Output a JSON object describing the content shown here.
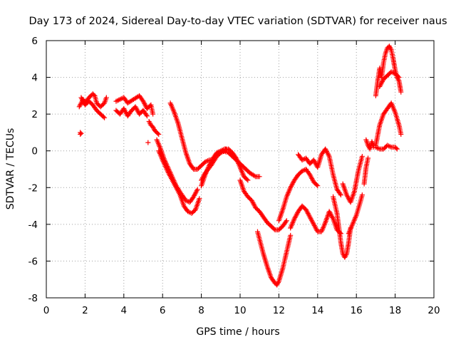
{
  "chart_data": {
    "type": "scatter",
    "title": "Day 173 of 2024, Sidereal Day-to-day VTEC variation (SDTVAR) for receiver naus",
    "xlabel": "GPS time / hours",
    "ylabel": "SDTVAR / TECUs",
    "xlim": [
      0,
      20
    ],
    "ylim": [
      -8,
      6
    ],
    "x_ticks": [
      "0",
      "2",
      "4",
      "6",
      "8",
      "10",
      "12",
      "14",
      "16",
      "18",
      "20"
    ],
    "y_ticks": [
      "-8",
      "-6",
      "-4",
      "-2",
      "0",
      "2",
      "4",
      "6"
    ],
    "grid": true,
    "legend": "none",
    "marker": "+",
    "color": "#ff0000",
    "series": [
      {
        "x": [
          1.75,
          1.8,
          1.75
        ],
        "y": [
          1.0,
          0.95,
          0.9
        ]
      },
      {
        "x": [
          1.7,
          1.8,
          1.9,
          2.0,
          2.2,
          2.4,
          2.5,
          2.6,
          2.8,
          3.0,
          3.1
        ],
        "y": [
          2.4,
          2.6,
          2.8,
          2.6,
          2.9,
          3.1,
          3.0,
          2.6,
          2.4,
          2.6,
          2.9
        ]
      },
      {
        "x": [
          1.8,
          2.0,
          2.2,
          2.4,
          2.6,
          2.8,
          3.0
        ],
        "y": [
          2.9,
          2.5,
          2.7,
          2.5,
          2.2,
          2.0,
          1.8
        ]
      },
      {
        "x": [
          3.6,
          3.8,
          4.0,
          4.2,
          4.5,
          4.8,
          5.0,
          5.2,
          5.4,
          5.5
        ],
        "y": [
          2.7,
          2.8,
          2.9,
          2.6,
          2.8,
          3.0,
          2.7,
          2.3,
          2.5,
          2.0
        ]
      },
      {
        "x": [
          3.6,
          3.8,
          4.0,
          4.2,
          4.4,
          4.6,
          4.8,
          5.0,
          5.2
        ],
        "y": [
          2.2,
          2.0,
          2.3,
          1.9,
          2.2,
          2.4,
          2.0,
          2.2,
          1.9
        ]
      },
      {
        "x": [
          5.3,
          5.4,
          5.5,
          5.6,
          5.7,
          5.8
        ],
        "y": [
          1.6,
          1.4,
          1.3,
          1.1,
          1.0,
          0.9
        ]
      },
      {
        "x": [
          5.25
        ],
        "y": [
          0.45
        ]
      },
      {
        "x": [
          5.8,
          6.0,
          6.3,
          6.6,
          6.9,
          7.1,
          7.3,
          7.5,
          7.7,
          7.9
        ],
        "y": [
          0.0,
          -0.5,
          -1.2,
          -1.8,
          -2.4,
          -3.0,
          -3.3,
          -3.4,
          -3.2,
          -2.6
        ]
      },
      {
        "x": [
          8.0,
          8.2,
          8.4,
          8.6,
          8.8,
          9.0,
          9.2,
          9.3
        ],
        "y": [
          -1.9,
          -1.3,
          -0.8,
          -0.4,
          -0.1,
          0.0,
          0.1,
          0.1
        ]
      },
      {
        "x": [
          5.7,
          5.9,
          6.1,
          6.4,
          6.7,
          7.0,
          7.2,
          7.4,
          7.6,
          7.8
        ],
        "y": [
          0.6,
          0.1,
          -0.5,
          -1.2,
          -1.9,
          -2.4,
          -2.7,
          -2.8,
          -2.5,
          -2.1
        ]
      },
      {
        "x": [
          8.0,
          8.2,
          8.5,
          8.8,
          9.1,
          9.4,
          9.7,
          10.0,
          10.3,
          10.5,
          10.8,
          11.0
        ],
        "y": [
          -1.6,
          -1.2,
          -0.8,
          -0.3,
          0.0,
          -0.1,
          -0.4,
          -0.7,
          -1.0,
          -1.2,
          -1.4,
          -1.4
        ]
      },
      {
        "x": [
          6.4,
          6.6,
          6.8,
          7.0,
          7.2,
          7.4,
          7.6,
          7.8,
          8.0,
          8.2,
          8.4,
          8.6
        ],
        "y": [
          2.6,
          2.1,
          1.5,
          0.7,
          -0.1,
          -0.7,
          -1.0,
          -1.0,
          -0.8,
          -0.6,
          -0.5,
          -0.5
        ]
      },
      {
        "x": [
          9.0,
          9.2,
          9.4,
          9.6,
          9.8,
          10.0,
          10.2,
          10.4
        ],
        "y": [
          -0.1,
          0.0,
          0.1,
          -0.1,
          -0.4,
          -0.9,
          -1.4,
          -1.6
        ]
      },
      {
        "x": [
          10.0,
          10.2,
          10.4,
          10.6,
          10.8,
          11.0,
          11.2,
          11.4,
          11.6,
          11.8,
          12.0,
          12.2,
          12.4
        ],
        "y": [
          -1.6,
          -2.2,
          -2.5,
          -2.7,
          -3.1,
          -3.3,
          -3.6,
          -3.9,
          -4.1,
          -4.3,
          -4.3,
          -4.1,
          -3.8
        ]
      },
      {
        "x": [
          10.9,
          11.0,
          11.2,
          11.4,
          11.6,
          11.8,
          11.9,
          12.0,
          12.2,
          12.4,
          12.6
        ],
        "y": [
          -4.4,
          -4.8,
          -5.6,
          -6.3,
          -6.9,
          -7.2,
          -7.3,
          -7.1,
          -6.4,
          -5.5,
          -4.6
        ]
      },
      {
        "x": [
          12.6,
          12.8,
          13.0,
          13.2,
          13.4,
          13.6,
          13.8,
          14.0,
          14.2,
          14.4,
          14.6,
          14.8,
          15.0,
          15.2
        ],
        "y": [
          -4.2,
          -3.7,
          -3.3,
          -3.0,
          -3.2,
          -3.6,
          -4.0,
          -4.4,
          -4.4,
          -3.9,
          -3.3,
          -3.7,
          -4.3,
          -4.5
        ]
      },
      {
        "x": [
          12.0,
          12.2,
          12.4,
          12.6,
          12.8,
          13.0,
          13.2,
          13.4,
          13.6,
          13.8,
          14.0
        ],
        "y": [
          -3.8,
          -3.2,
          -2.5,
          -2.0,
          -1.6,
          -1.3,
          -1.1,
          -1.0,
          -1.3,
          -1.7,
          -1.9
        ]
      },
      {
        "x": [
          13.0,
          13.2,
          13.4,
          13.6,
          13.8,
          14.0,
          14.2,
          14.4,
          14.6,
          14.8,
          15.0,
          15.2
        ],
        "y": [
          -0.2,
          -0.5,
          -0.4,
          -0.7,
          -0.5,
          -0.9,
          -0.2,
          0.1,
          -0.3,
          -1.3,
          -2.1,
          -2.4
        ]
      },
      {
        "x": [
          14.8,
          15.0,
          15.1,
          15.2,
          15.3,
          15.4,
          15.5,
          15.6,
          15.7
        ],
        "y": [
          -2.5,
          -3.4,
          -4.2,
          -5.0,
          -5.6,
          -5.8,
          -5.6,
          -5.0,
          -4.2
        ]
      },
      {
        "x": [
          15.3,
          15.5,
          15.7,
          15.9,
          16.1,
          16.3
        ],
        "y": [
          -1.8,
          -2.4,
          -2.8,
          -2.2,
          -1.1,
          -0.3
        ]
      },
      {
        "x": [
          15.6,
          15.8,
          16.0,
          16.2,
          16.3
        ],
        "y": [
          -4.5,
          -4.0,
          -3.5,
          -2.8,
          -2.4
        ]
      },
      {
        "x": [
          16.5,
          16.6,
          16.7,
          16.8,
          16.9
        ],
        "y": [
          0.6,
          0.3,
          0.1,
          0.5,
          0.2
        ]
      },
      {
        "x": [
          16.4,
          16.5,
          16.6
        ],
        "y": [
          -1.8,
          -0.9,
          -0.4
        ]
      },
      {
        "x": [
          17.0,
          17.2,
          17.4,
          17.6,
          17.8,
          18.0,
          18.2,
          18.3
        ],
        "y": [
          0.3,
          1.4,
          2.0,
          2.3,
          2.6,
          2.1,
          1.4,
          0.9
        ]
      },
      {
        "x": [
          17.0,
          17.2,
          17.4,
          17.6,
          17.8,
          18.0,
          18.1
        ],
        "y": [
          0.2,
          0.1,
          0.1,
          0.3,
          0.2,
          0.2,
          0.1
        ]
      },
      {
        "x": [
          17.0,
          17.1,
          17.2,
          17.3,
          17.4,
          17.5,
          17.6,
          17.7,
          17.8,
          17.9,
          18.0,
          18.1,
          18.2,
          18.3
        ],
        "y": [
          3.0,
          3.8,
          4.5,
          4.0,
          4.8,
          5.3,
          5.6,
          5.7,
          5.5,
          5.0,
          4.4,
          4.0,
          3.8,
          3.2
        ]
      },
      {
        "x": [
          17.2,
          17.4,
          17.6,
          17.8,
          18.0,
          18.2
        ],
        "y": [
          3.5,
          3.9,
          4.1,
          4.3,
          4.2,
          4.0
        ]
      }
    ]
  }
}
